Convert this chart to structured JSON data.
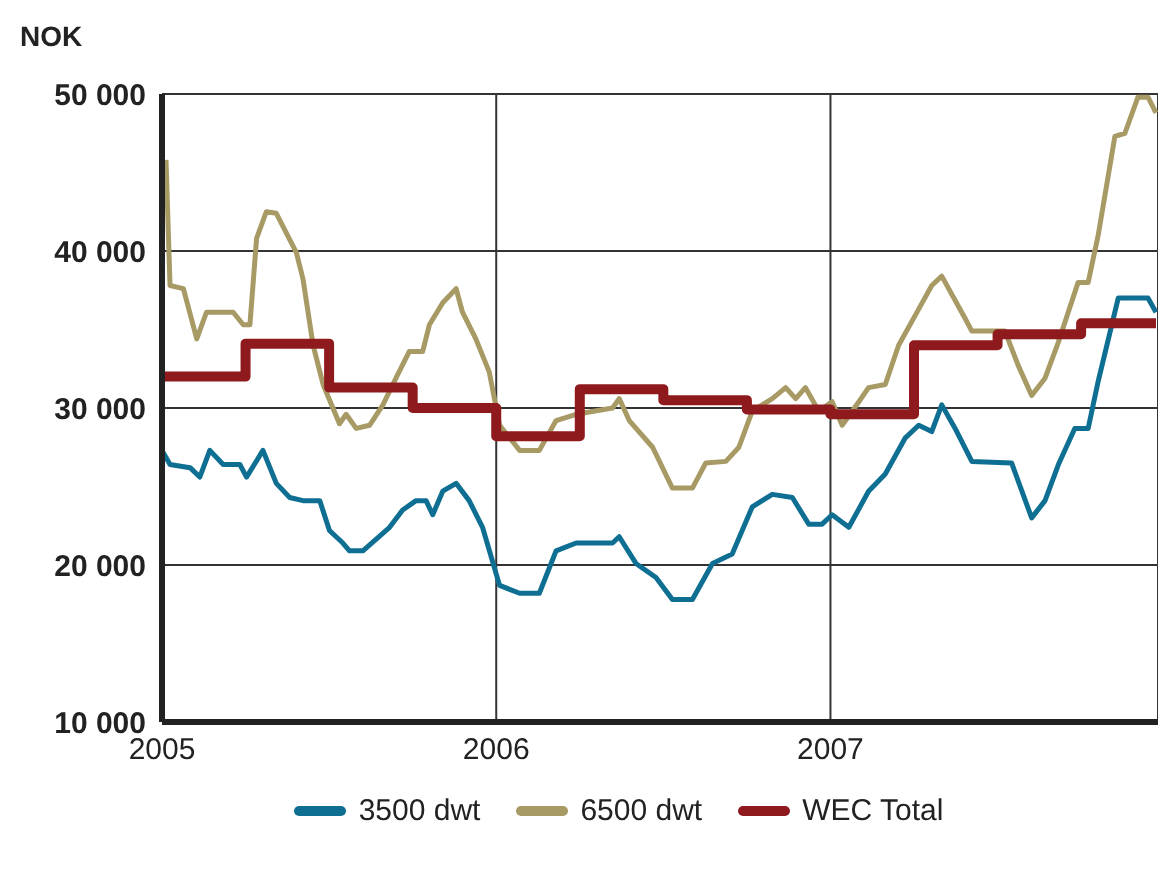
{
  "chart_data": {
    "type": "line",
    "ylabel": "NOK",
    "xlim": [
      2005,
      2007.98
    ],
    "xticks": [
      2005,
      2006,
      2007
    ],
    "ylim": [
      10000,
      50000
    ],
    "yticks": [
      {
        "value": 10000,
        "label": "10 000"
      },
      {
        "value": 20000,
        "label": "20 000"
      },
      {
        "value": 30000,
        "label": "30 000"
      },
      {
        "value": 40000,
        "label": "40 000"
      },
      {
        "value": 50000,
        "label": "50 000"
      }
    ],
    "grid": true,
    "legend": "bottom",
    "marker": "none",
    "series": [
      {
        "name": "3500 dwt",
        "color": "#0f6f93",
        "x": [
          2005.0,
          2005.024,
          2005.084,
          2005.113,
          2005.143,
          2005.183,
          2005.233,
          2005.253,
          2005.302,
          2005.342,
          2005.382,
          2005.422,
          2005.472,
          2005.501,
          2005.541,
          2005.561,
          2005.601,
          2005.681,
          2005.72,
          2005.76,
          2005.79,
          2005.81,
          2005.84,
          2005.88,
          2005.919,
          2005.959,
          2006.01,
          2006.07,
          2006.129,
          2006.179,
          2006.239,
          2006.348,
          2006.368,
          2006.418,
          2006.478,
          2006.527,
          2006.587,
          2006.647,
          2006.706,
          2006.766,
          2006.826,
          2006.886,
          2006.935,
          2006.975,
          2007.005,
          2007.055,
          2007.114,
          2007.164,
          2007.224,
          2007.264,
          2007.303,
          2007.333,
          2007.373,
          2007.423,
          2007.542,
          2007.602,
          2007.642,
          2007.682,
          2007.731,
          2007.771,
          2007.801,
          2007.861,
          2007.95,
          2007.974
        ],
        "values": [
          27300,
          26400,
          26200,
          25600,
          27300,
          26400,
          26400,
          25600,
          27300,
          25200,
          24300,
          24100,
          24100,
          22200,
          21400,
          20900,
          20900,
          22400,
          23500,
          24100,
          24100,
          23200,
          24700,
          25200,
          24100,
          22400,
          18700,
          18200,
          18200,
          20900,
          21400,
          21400,
          21800,
          20100,
          19200,
          17800,
          17800,
          20100,
          20700,
          23700,
          24500,
          24300,
          22600,
          22600,
          23200,
          22400,
          24700,
          25800,
          28100,
          28900,
          28500,
          30200,
          28700,
          26600,
          26500,
          23000,
          24100,
          26400,
          28700,
          28700,
          31700,
          37000,
          37000,
          36100
        ]
      },
      {
        "name": "6500 dwt",
        "color": "#a89a64",
        "x": [
          2005.012,
          2005.024,
          2005.064,
          2005.104,
          2005.133,
          2005.213,
          2005.243,
          2005.263,
          2005.283,
          2005.312,
          2005.342,
          2005.402,
          2005.422,
          2005.452,
          2005.482,
          2005.531,
          2005.551,
          2005.581,
          2005.621,
          2005.661,
          2005.7,
          2005.74,
          2005.78,
          2005.8,
          2005.84,
          2005.88,
          2005.899,
          2005.939,
          2005.979,
          2006.01,
          2006.07,
          2006.129,
          2006.179,
          2006.239,
          2006.348,
          2006.368,
          2006.398,
          2006.468,
          2006.527,
          2006.587,
          2006.627,
          2006.687,
          2006.726,
          2006.766,
          2006.826,
          2006.866,
          2006.896,
          2006.925,
          2006.965,
          2007.005,
          2007.035,
          2007.085,
          2007.114,
          2007.164,
          2007.204,
          2007.264,
          2007.303,
          2007.333,
          2007.403,
          2007.423,
          2007.522,
          2007.562,
          2007.602,
          2007.642,
          2007.682,
          2007.741,
          2007.771,
          2007.801,
          2007.851,
          2007.881,
          2007.92,
          2007.95,
          2007.974
        ],
        "values": [
          45800,
          37800,
          37600,
          34400,
          36100,
          36100,
          35300,
          35300,
          40800,
          42500,
          42400,
          39900,
          38200,
          34000,
          31500,
          29000,
          29600,
          28700,
          28900,
          30200,
          31900,
          33600,
          33600,
          35300,
          36700,
          37600,
          36100,
          34400,
          32300,
          28900,
          27300,
          27300,
          29200,
          29600,
          30000,
          30600,
          29200,
          27500,
          24900,
          24900,
          26500,
          26600,
          27500,
          29800,
          30600,
          31300,
          30600,
          31300,
          29800,
          30400,
          28900,
          30400,
          31300,
          31500,
          34000,
          36300,
          37800,
          38400,
          35700,
          34900,
          34900,
          32700,
          30800,
          31900,
          34200,
          38000,
          38000,
          41000,
          47300,
          47500,
          49800,
          49800,
          48800
        ]
      },
      {
        "name": "WEC Total",
        "color": "#8f1a1e",
        "type": "step",
        "x": [
          2005,
          2005.25,
          2005.5,
          2005.75,
          2006,
          2006.25,
          2006.5,
          2006.75,
          2007,
          2007.25,
          2007.5,
          2007.75,
          2007.974
        ],
        "values": [
          32000,
          34100,
          31300,
          30000,
          28200,
          31200,
          30500,
          29900,
          29600,
          34000,
          34700,
          35400,
          35400
        ]
      }
    ]
  }
}
